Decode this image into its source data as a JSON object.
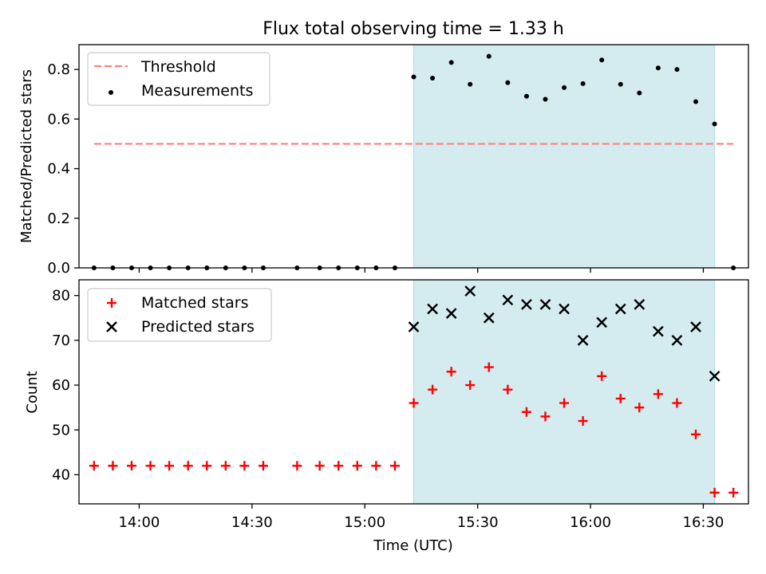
{
  "title": "Flux total observing time = 1.33 h",
  "xlabel": "Time (UTC)",
  "colors": {
    "threshold": "#ff7f7f",
    "measurement": "#000000",
    "matched": "#ff0000",
    "predicted": "#000000",
    "shade": "#d4ebf0",
    "shade_edge": "#b0dbe6"
  },
  "chart_data": [
    {
      "type": "scatter",
      "panel": "top",
      "ylabel": "Matched/Predicted stars",
      "xlim": [
        "13:44",
        "16:42"
      ],
      "ylim": [
        0,
        0.9
      ],
      "yticks": [
        0.0,
        0.2,
        0.4,
        0.6,
        0.8
      ],
      "ytick_labels": [
        "0.0",
        "0.2",
        "0.4",
        "0.6",
        "0.8"
      ],
      "xticks": [
        "14:00",
        "14:30",
        "15:00",
        "15:30",
        "16:00",
        "16:30"
      ],
      "shaded_range": [
        "15:13",
        "16:33"
      ],
      "legend_position": "upper-left",
      "threshold": {
        "name": "Threshold",
        "value": 0.5,
        "x_range": [
          "13:48",
          "16:38"
        ]
      },
      "series": [
        {
          "name": "Measurements",
          "x": [
            "13:48",
            "13:53",
            "13:58",
            "14:03",
            "14:08",
            "14:13",
            "14:18",
            "14:23",
            "14:28",
            "14:33",
            "14:42",
            "14:48",
            "14:53",
            "14:58",
            "15:03",
            "15:08",
            "15:13",
            "15:18",
            "15:23",
            "15:28",
            "15:33",
            "15:38",
            "15:43",
            "15:48",
            "15:53",
            "15:58",
            "16:03",
            "16:08",
            "16:13",
            "16:18",
            "16:23",
            "16:28",
            "16:33",
            "16:38"
          ],
          "y": [
            0,
            0,
            0,
            0,
            0,
            0,
            0,
            0,
            0,
            0,
            0,
            0,
            0,
            0,
            0,
            0,
            0.77,
            0.765,
            0.828,
            0.74,
            0.853,
            0.747,
            0.692,
            0.68,
            0.727,
            0.743,
            0.838,
            0.74,
            0.705,
            0.806,
            0.8,
            0.67,
            0.58,
            0
          ]
        }
      ]
    },
    {
      "type": "scatter",
      "panel": "bottom",
      "ylabel": "Count",
      "xlim": [
        "13:44",
        "16:42"
      ],
      "ylim": [
        33.5,
        83.5
      ],
      "yticks": [
        40,
        50,
        60,
        70,
        80
      ],
      "ytick_labels": [
        "40",
        "50",
        "60",
        "70",
        "80"
      ],
      "xticks": [
        "14:00",
        "14:30",
        "15:00",
        "15:30",
        "16:00",
        "16:30"
      ],
      "xtick_labels": [
        "14:00",
        "14:30",
        "15:00",
        "15:30",
        "16:00",
        "16:30"
      ],
      "shaded_range": [
        "15:13",
        "16:33"
      ],
      "legend_position": "upper-left",
      "series": [
        {
          "name": "Matched stars",
          "marker": "plus",
          "x": [
            "13:48",
            "13:53",
            "13:58",
            "14:03",
            "14:08",
            "14:13",
            "14:18",
            "14:23",
            "14:28",
            "14:33",
            "14:42",
            "14:48",
            "14:53",
            "14:58",
            "15:03",
            "15:08",
            "15:13",
            "15:18",
            "15:23",
            "15:28",
            "15:33",
            "15:38",
            "15:43",
            "15:48",
            "15:53",
            "15:58",
            "16:03",
            "16:08",
            "16:13",
            "16:18",
            "16:23",
            "16:28",
            "16:33",
            "16:38"
          ],
          "y": [
            42,
            42,
            42,
            42,
            42,
            42,
            42,
            42,
            42,
            42,
            42,
            42,
            42,
            42,
            42,
            42,
            56,
            59,
            63,
            60,
            64,
            59,
            54,
            53,
            56,
            52,
            62,
            57,
            55,
            58,
            56,
            49,
            36,
            36
          ]
        },
        {
          "name": "Predicted stars",
          "marker": "x",
          "x": [
            "15:13",
            "15:18",
            "15:23",
            "15:28",
            "15:33",
            "15:38",
            "15:43",
            "15:48",
            "15:53",
            "15:58",
            "16:03",
            "16:08",
            "16:13",
            "16:18",
            "16:23",
            "16:28",
            "16:33"
          ],
          "y": [
            73,
            77,
            76,
            81,
            75,
            79,
            78,
            78,
            77,
            70,
            74,
            77,
            78,
            72,
            70,
            73,
            62
          ]
        }
      ]
    }
  ]
}
